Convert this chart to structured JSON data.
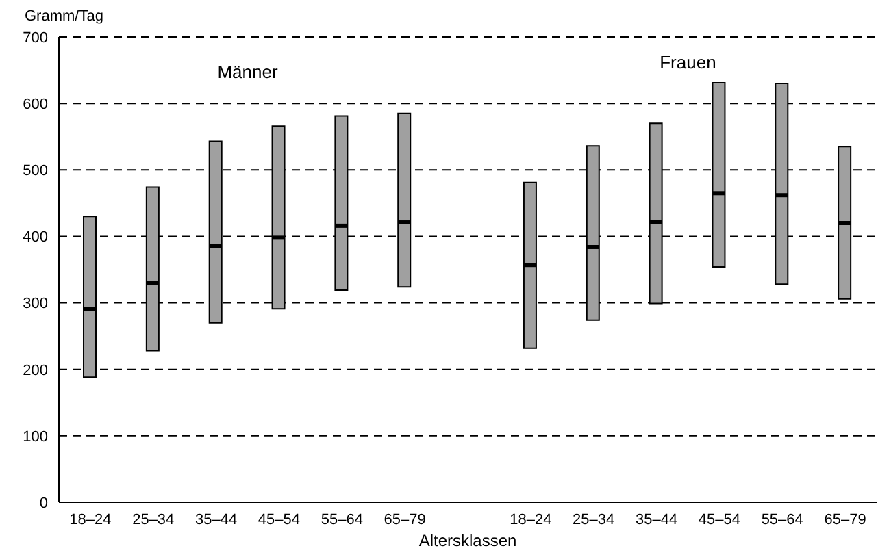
{
  "chart_data": {
    "type": "box",
    "ylabel": "Gramm/Tag",
    "xlabel": "Altersklassen",
    "annotations": [
      "Männer",
      "Frauen"
    ],
    "categories": [
      "18–24",
      "25–34",
      "35–44",
      "45–54",
      "55–64",
      "65–79",
      null,
      "18–24",
      "25–34",
      "35–44",
      "45–54",
      "55–64",
      "65–79"
    ],
    "series": [
      {
        "color": "#a0a0a0",
        "boxes": [
          {
            "low": 188,
            "q1": 188,
            "median": 291,
            "q3": 430,
            "high": 430
          },
          {
            "low": 228,
            "q1": 228,
            "median": 330,
            "q3": 474,
            "high": 474
          },
          {
            "low": 270,
            "q1": 270,
            "median": 385,
            "q3": 543,
            "high": 543
          },
          {
            "low": 291,
            "q1": 291,
            "median": 398,
            "q3": 566,
            "high": 566
          },
          {
            "low": 319,
            "q1": 319,
            "median": 416,
            "q3": 581,
            "high": 581
          },
          {
            "low": 324,
            "q1": 324,
            "median": 421,
            "q3": 585,
            "high": 585
          },
          null,
          {
            "low": 232,
            "q1": 232,
            "median": 357,
            "q3": 481,
            "high": 481
          },
          {
            "low": 274,
            "q1": 274,
            "median": 384,
            "q3": 536,
            "high": 536
          },
          {
            "low": 299,
            "q1": 299,
            "median": 422,
            "q3": 570,
            "high": 570
          },
          {
            "low": 354,
            "q1": 354,
            "median": 465,
            "q3": 631,
            "high": 631
          },
          {
            "low": 328,
            "q1": 328,
            "median": 462,
            "q3": 630,
            "high": 630
          },
          {
            "low": 306,
            "q1": 306,
            "median": 420,
            "q3": 535,
            "high": 535
          }
        ]
      }
    ],
    "ylim": [
      0,
      700
    ],
    "yticks": [
      0,
      100,
      200,
      300,
      400,
      500,
      600,
      700
    ],
    "grid": "y",
    "line_style": "dashed"
  }
}
